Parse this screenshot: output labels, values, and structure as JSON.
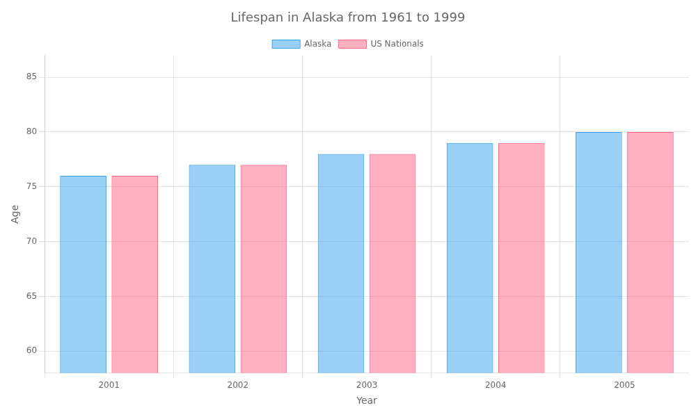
{
  "chart_data": {
    "type": "bar",
    "title": "Lifespan in Alaska from 1961 to 1999",
    "x_label": "Year",
    "y_label": "Age",
    "categories": [
      "2001",
      "2002",
      "2003",
      "2004",
      "2005"
    ],
    "series": [
      {
        "name": "Alaska",
        "values": [
          76.0,
          77.0,
          78.0,
          79.0,
          80.0
        ]
      },
      {
        "name": "US Nationals",
        "values": [
          76.0,
          77.0,
          78.0,
          79.0,
          80.0
        ]
      }
    ],
    "ylim": [
      58,
      87
    ],
    "yticks": [
      60,
      65,
      70,
      75,
      80,
      85
    ],
    "grid": true,
    "legend": "top"
  }
}
